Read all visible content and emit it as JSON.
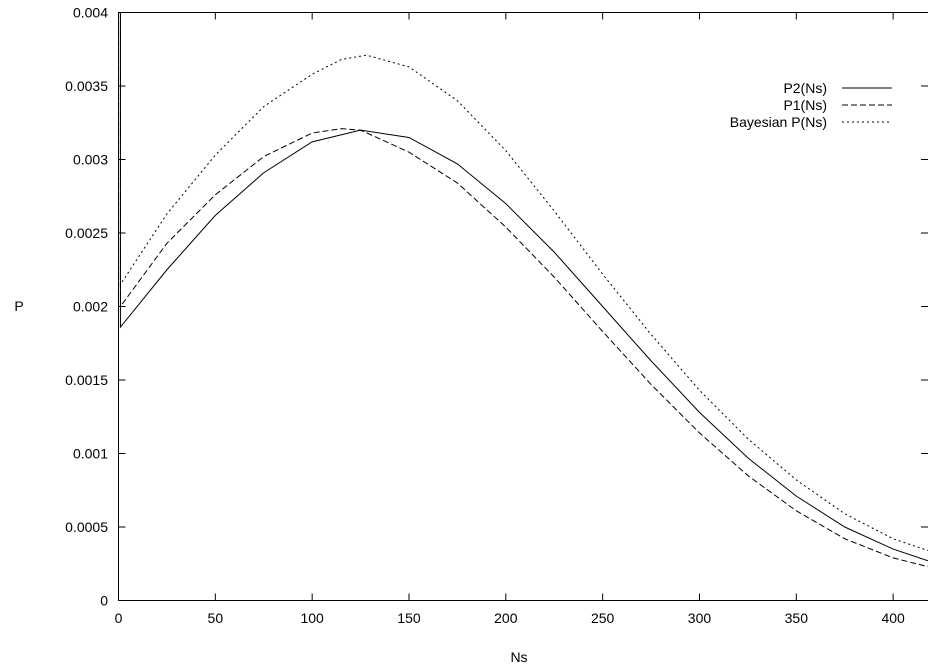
{
  "chart_data": {
    "type": "line",
    "title": "",
    "xlabel": "Ns",
    "ylabel": "P",
    "xlim": [
      0,
      418
    ],
    "ylim": [
      0,
      0.004
    ],
    "grid": false,
    "legend_position": "top-right",
    "x_ticks": [
      {
        "value": 0,
        "label": "0"
      },
      {
        "value": 50,
        "label": "50"
      },
      {
        "value": 100,
        "label": "100"
      },
      {
        "value": 150,
        "label": "150"
      },
      {
        "value": 200,
        "label": "200"
      },
      {
        "value": 250,
        "label": "250"
      },
      {
        "value": 300,
        "label": "300"
      },
      {
        "value": 350,
        "label": "350"
      },
      {
        "value": 400,
        "label": "400"
      }
    ],
    "y_ticks": [
      {
        "value": 0,
        "label": "0"
      },
      {
        "value": 0.0005,
        "label": "0.0005"
      },
      {
        "value": 0.001,
        "label": "0.001"
      },
      {
        "value": 0.0015,
        "label": "0.0015"
      },
      {
        "value": 0.002,
        "label": "0.002"
      },
      {
        "value": 0.0025,
        "label": "0.0025"
      },
      {
        "value": 0.003,
        "label": "0.003"
      },
      {
        "value": 0.0035,
        "label": "0.0035"
      },
      {
        "value": 0.004,
        "label": "0.004"
      }
    ],
    "series": [
      {
        "name": "P2(Ns)",
        "dash": "solid",
        "x": [
          1,
          25,
          50,
          75,
          100,
          125,
          150,
          175,
          200,
          225,
          250,
          275,
          300,
          325,
          350,
          375,
          400,
          418
        ],
        "y": [
          0.00186,
          0.00225,
          0.00262,
          0.00291,
          0.00312,
          0.0032,
          0.00315,
          0.00297,
          0.0027,
          0.00237,
          0.002,
          0.00163,
          0.00128,
          0.00097,
          0.00071,
          0.0005,
          0.00035,
          0.00027
        ]
      },
      {
        "name": "P1(Ns)",
        "dash": "dashed",
        "x": [
          1,
          25,
          50,
          75,
          100,
          115,
          125,
          150,
          175,
          200,
          225,
          250,
          275,
          300,
          325,
          350,
          375,
          400,
          418
        ],
        "y": [
          0.002,
          0.00243,
          0.00276,
          0.00302,
          0.00318,
          0.00321,
          0.0032,
          0.00305,
          0.00284,
          0.00254,
          0.0022,
          0.00183,
          0.00147,
          0.00114,
          0.00085,
          0.00061,
          0.00042,
          0.00029,
          0.00023
        ]
      },
      {
        "name": "Bayesian P(Ns)",
        "dash": "dotted",
        "x": [
          1,
          25,
          50,
          75,
          100,
          115,
          128,
          150,
          175,
          200,
          225,
          250,
          275,
          300,
          325,
          350,
          375,
          400,
          418
        ],
        "y": [
          0.00215,
          0.00263,
          0.00303,
          0.00336,
          0.00358,
          0.00368,
          0.00371,
          0.00363,
          0.0034,
          0.00306,
          0.00265,
          0.00222,
          0.00181,
          0.00143,
          0.0011,
          0.00082,
          0.00059,
          0.00042,
          0.00034
        ]
      }
    ],
    "start_spike": {
      "x": 1,
      "y_top": 0.004
    }
  }
}
